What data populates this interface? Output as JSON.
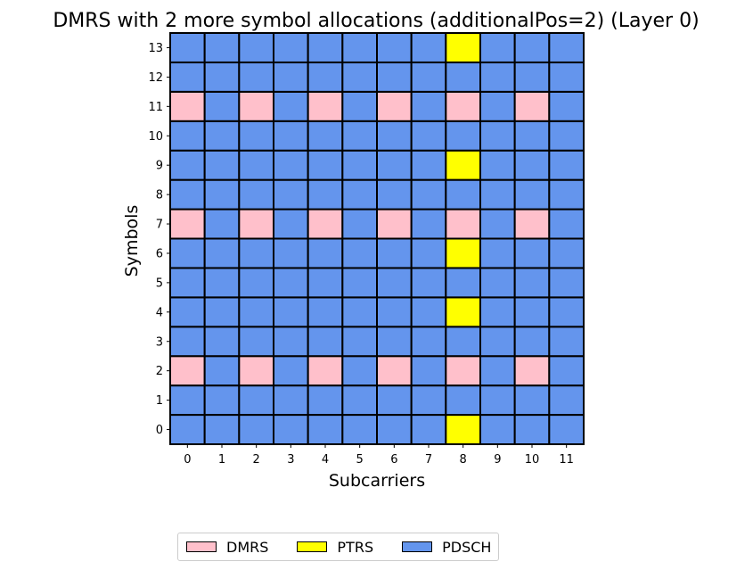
{
  "chart_data": {
    "type": "heatmap",
    "title": "DMRS with 2 more symbol allocations (additionalPos=2) (Layer 0)",
    "xlabel": "Subcarriers",
    "ylabel": "Symbols",
    "x_ticks": [
      "0",
      "1",
      "2",
      "3",
      "4",
      "5",
      "6",
      "7",
      "8",
      "9",
      "10",
      "11"
    ],
    "y_ticks": [
      "0",
      "1",
      "2",
      "3",
      "4",
      "5",
      "6",
      "7",
      "8",
      "9",
      "10",
      "11",
      "12",
      "13"
    ],
    "colors": {
      "DMRS": "#ffc0cb",
      "PTRS": "#ffff00",
      "PDSCH": "#6495ed"
    },
    "legend": {
      "placement": "bottom-center",
      "entries": [
        "DMRS",
        "PTRS",
        "PDSCH"
      ]
    },
    "grid": [
      [
        "PDSCH",
        "PDSCH",
        "PDSCH",
        "PDSCH",
        "PDSCH",
        "PDSCH",
        "PDSCH",
        "PDSCH",
        "PTRS",
        "PDSCH",
        "PDSCH",
        "PDSCH"
      ],
      [
        "PDSCH",
        "PDSCH",
        "PDSCH",
        "PDSCH",
        "PDSCH",
        "PDSCH",
        "PDSCH",
        "PDSCH",
        "PDSCH",
        "PDSCH",
        "PDSCH",
        "PDSCH"
      ],
      [
        "DMRS",
        "PDSCH",
        "DMRS",
        "PDSCH",
        "DMRS",
        "PDSCH",
        "DMRS",
        "PDSCH",
        "DMRS",
        "PDSCH",
        "DMRS",
        "PDSCH"
      ],
      [
        "PDSCH",
        "PDSCH",
        "PDSCH",
        "PDSCH",
        "PDSCH",
        "PDSCH",
        "PDSCH",
        "PDSCH",
        "PDSCH",
        "PDSCH",
        "PDSCH",
        "PDSCH"
      ],
      [
        "PDSCH",
        "PDSCH",
        "PDSCH",
        "PDSCH",
        "PDSCH",
        "PDSCH",
        "PDSCH",
        "PDSCH",
        "PTRS",
        "PDSCH",
        "PDSCH",
        "PDSCH"
      ],
      [
        "PDSCH",
        "PDSCH",
        "PDSCH",
        "PDSCH",
        "PDSCH",
        "PDSCH",
        "PDSCH",
        "PDSCH",
        "PDSCH",
        "PDSCH",
        "PDSCH",
        "PDSCH"
      ],
      [
        "PDSCH",
        "PDSCH",
        "PDSCH",
        "PDSCH",
        "PDSCH",
        "PDSCH",
        "PDSCH",
        "PDSCH",
        "PTRS",
        "PDSCH",
        "PDSCH",
        "PDSCH"
      ],
      [
        "DMRS",
        "PDSCH",
        "DMRS",
        "PDSCH",
        "DMRS",
        "PDSCH",
        "DMRS",
        "PDSCH",
        "DMRS",
        "PDSCH",
        "DMRS",
        "PDSCH"
      ],
      [
        "PDSCH",
        "PDSCH",
        "PDSCH",
        "PDSCH",
        "PDSCH",
        "PDSCH",
        "PDSCH",
        "PDSCH",
        "PDSCH",
        "PDSCH",
        "PDSCH",
        "PDSCH"
      ],
      [
        "PDSCH",
        "PDSCH",
        "PDSCH",
        "PDSCH",
        "PDSCH",
        "PDSCH",
        "PDSCH",
        "PDSCH",
        "PTRS",
        "PDSCH",
        "PDSCH",
        "PDSCH"
      ],
      [
        "PDSCH",
        "PDSCH",
        "PDSCH",
        "PDSCH",
        "PDSCH",
        "PDSCH",
        "PDSCH",
        "PDSCH",
        "PDSCH",
        "PDSCH",
        "PDSCH",
        "PDSCH"
      ],
      [
        "DMRS",
        "PDSCH",
        "DMRS",
        "PDSCH",
        "DMRS",
        "PDSCH",
        "DMRS",
        "PDSCH",
        "DMRS",
        "PDSCH",
        "DMRS",
        "PDSCH"
      ],
      [
        "PDSCH",
        "PDSCH",
        "PDSCH",
        "PDSCH",
        "PDSCH",
        "PDSCH",
        "PDSCH",
        "PDSCH",
        "PDSCH",
        "PDSCH",
        "PDSCH",
        "PDSCH"
      ],
      [
        "PDSCH",
        "PDSCH",
        "PDSCH",
        "PDSCH",
        "PDSCH",
        "PDSCH",
        "PDSCH",
        "PDSCH",
        "PTRS",
        "PDSCH",
        "PDSCH",
        "PDSCH"
      ]
    ]
  }
}
